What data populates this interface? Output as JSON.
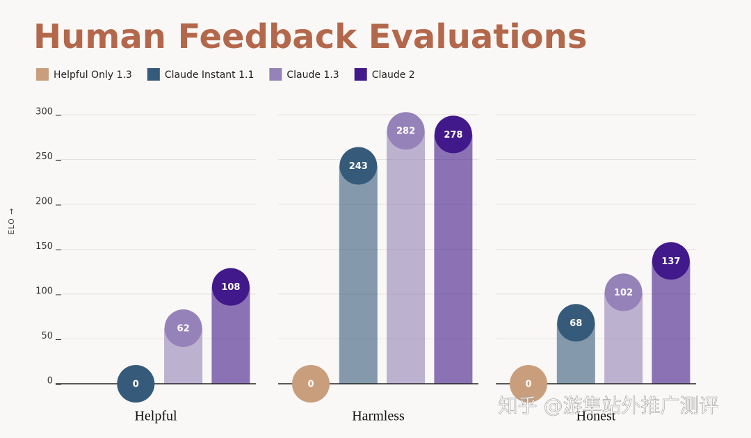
{
  "chart_data": {
    "type": "bar",
    "title": "Human Feedback Evaluations",
    "y_label": "ELO →",
    "categories": [
      "Helpful",
      "Harmless",
      "Honest"
    ],
    "series": [
      {
        "name": "Helpful Only 1.3",
        "color": "#c99e7c",
        "values": [
          null,
          0,
          0
        ]
      },
      {
        "name": "Claude Instant 1.1",
        "color": "#365a79",
        "values": [
          0,
          243,
          68
        ]
      },
      {
        "name": "Claude 1.3",
        "color": "#9582b8",
        "values": [
          62,
          282,
          102
        ]
      },
      {
        "name": "Claude 2",
        "color": "#41198a",
        "values": [
          108,
          278,
          137
        ]
      }
    ],
    "ylim": [
      0,
      300
    ],
    "yticks": [
      0,
      50,
      100,
      150,
      200,
      250,
      300
    ],
    "grid": true,
    "watermark": "知乎 @游隼站外推广测评"
  }
}
